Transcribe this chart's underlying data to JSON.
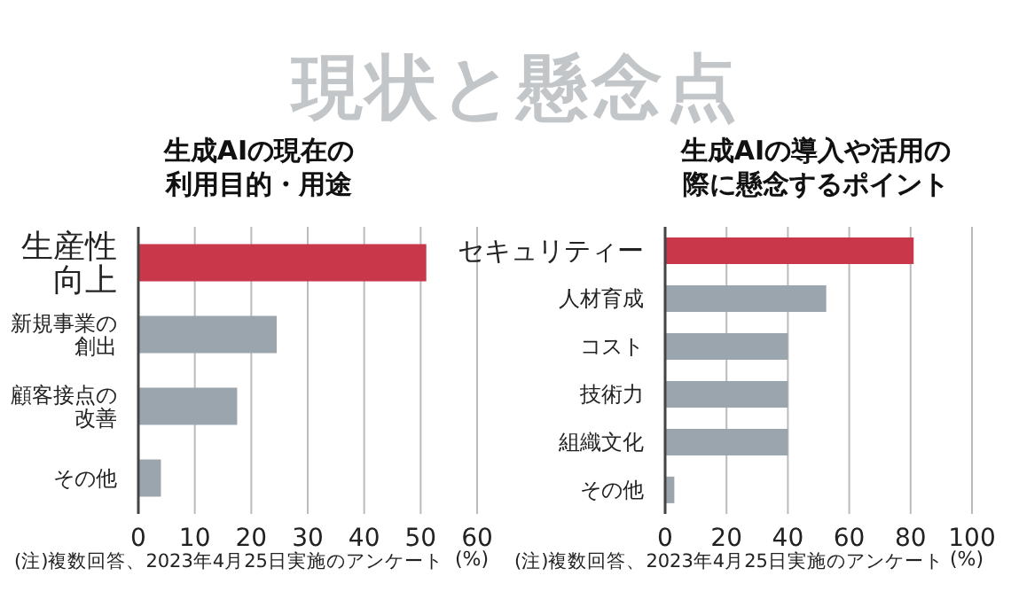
{
  "chart_data": [
    {
      "type": "bar",
      "orientation": "horizontal",
      "title": "現状と懸念点",
      "subtitle": "生成AIの現在の利用目的・用途",
      "categories": [
        "生産性向上",
        "新規事業の創出",
        "顧客接点の改善",
        "その他"
      ],
      "values": [
        51,
        24.5,
        17.5,
        4
      ],
      "colors": [
        "#c8374a",
        "#9aa5ad",
        "#9aa5ad",
        "#9aa5ad"
      ],
      "xlim": [
        0,
        60
      ],
      "xticks": [
        0,
        10,
        20,
        30,
        40,
        50,
        60
      ],
      "xlabel": "(%)",
      "grid": "x",
      "annotations": [
        "(注)複数回答、2023年4月25日実施のアンケート"
      ]
    },
    {
      "type": "bar",
      "orientation": "horizontal",
      "title": "生成AIの導入や活用の際に懸念するポイント",
      "categories": [
        "セキュリティー",
        "人材育成",
        "コスト",
        "技術力",
        "組織文化",
        "その他"
      ],
      "values": [
        81,
        52.5,
        40,
        40,
        40,
        3
      ],
      "colors": [
        "#c8374a",
        "#9aa5ad",
        "#9aa5ad",
        "#9aa5ad",
        "#9aa5ad",
        "#9aa5ad"
      ],
      "xlim": [
        0,
        100
      ],
      "xticks": [
        0,
        20,
        40,
        60,
        80,
        100
      ],
      "xlabel": "(%)",
      "grid": "x",
      "annotations": [
        "(注)複数回答、2023年4月25日実施のアンケート"
      ]
    }
  ]
}
